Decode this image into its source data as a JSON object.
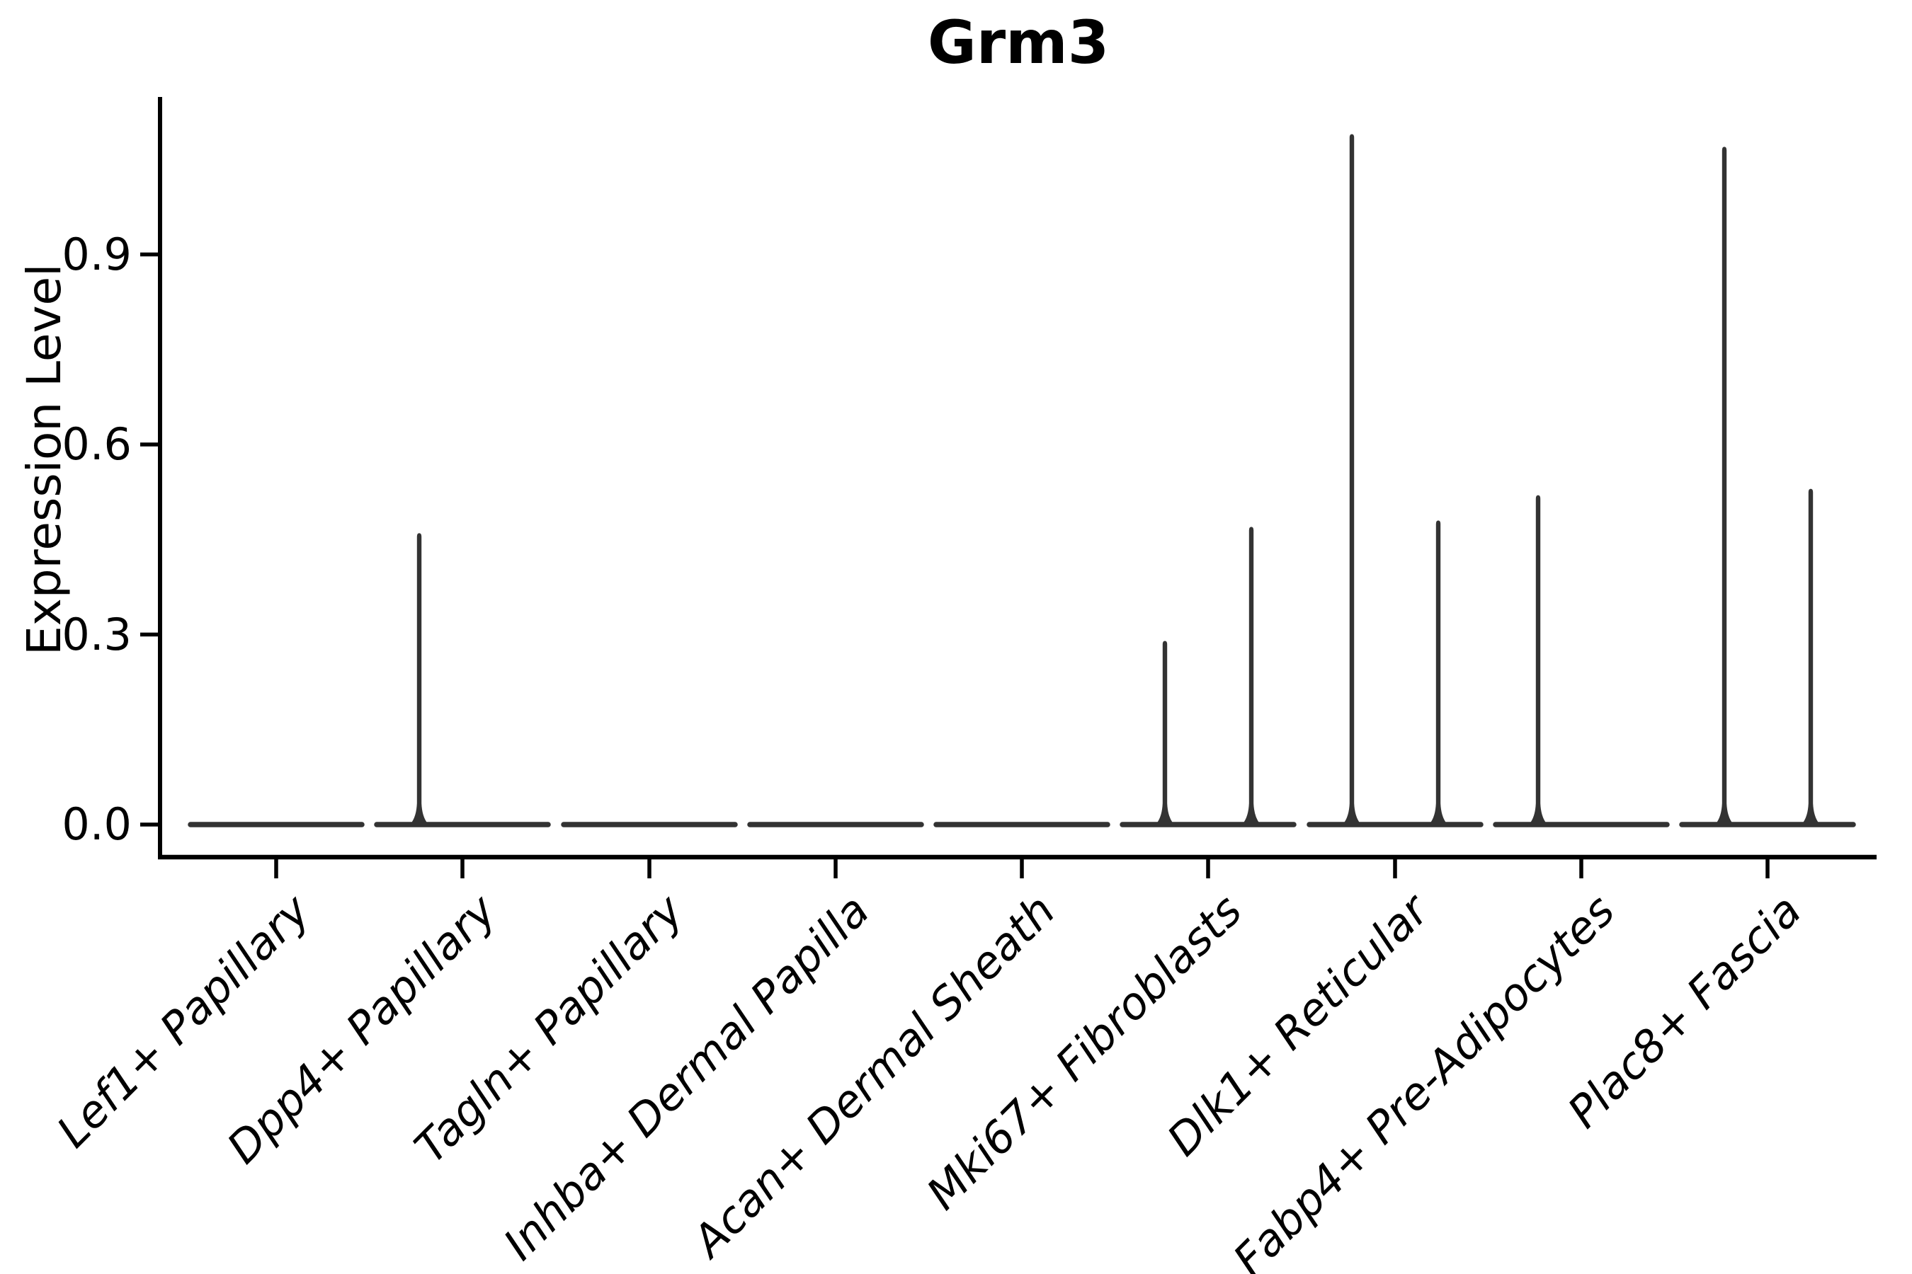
{
  "figure": {
    "title": "Grm3",
    "y_axis": {
      "label": "Expression Level",
      "ticks": [
        {
          "label": "0.0",
          "value": 0.0
        },
        {
          "label": "0.3",
          "value": 0.3
        },
        {
          "label": "0.6",
          "value": 0.6
        },
        {
          "label": "0.9",
          "value": 0.9
        }
      ]
    },
    "x_axis": {
      "categories": [
        "Lef1+ Papillary",
        "Dpp4+ Papillary",
        "Tagln+ Papillary",
        "Inhba+ Dermal Papilla",
        "Acan+ Dermal Sheath",
        "Mki67+ Fibroblasts",
        "Dlk1+ Reticular",
        "Fabp4+ Pre-Adipocytes",
        "Plac8+ Fascia"
      ]
    }
  },
  "chart_data": {
    "type": "violin",
    "title": "Grm3",
    "xlabel": "",
    "ylabel": "Expression Level",
    "ylim": [
      0,
      1.15
    ],
    "yticks": [
      0.0,
      0.3,
      0.6,
      0.9
    ],
    "grid": false,
    "legend": false,
    "categories": [
      "Lef1+ Papillary",
      "Dpp4+ Papillary",
      "Tagln+ Papillary",
      "Inhba+ Dermal Papilla",
      "Acan+ Dermal Sheath",
      "Mki67+ Fibroblasts",
      "Dlk1+ Reticular",
      "Fabp4+ Pre-Adipocytes",
      "Plac8+ Fascia"
    ],
    "series": [
      {
        "category": "Lef1+ Papillary",
        "baseline": 0.0,
        "spikes": []
      },
      {
        "category": "Dpp4+ Papillary",
        "baseline": 0.0,
        "spikes": [
          {
            "side": "left",
            "max": 0.46
          }
        ]
      },
      {
        "category": "Tagln+ Papillary",
        "baseline": 0.0,
        "spikes": []
      },
      {
        "category": "Inhba+ Dermal Papilla",
        "baseline": 0.0,
        "spikes": []
      },
      {
        "category": "Acan+ Dermal Sheath",
        "baseline": 0.0,
        "spikes": []
      },
      {
        "category": "Mki67+ Fibroblasts",
        "baseline": 0.0,
        "spikes": [
          {
            "side": "left",
            "max": 0.29
          },
          {
            "side": "right",
            "max": 0.47
          }
        ]
      },
      {
        "category": "Dlk1+ Reticular",
        "baseline": 0.0,
        "spikes": [
          {
            "side": "left",
            "max": 1.09
          },
          {
            "side": "right",
            "max": 0.48
          }
        ]
      },
      {
        "category": "Fabp4+ Pre-Adipocytes",
        "baseline": 0.0,
        "spikes": [
          {
            "side": "left",
            "max": 0.52
          }
        ]
      },
      {
        "category": "Plac8+ Fascia",
        "baseline": 0.0,
        "spikes": [
          {
            "side": "left",
            "max": 1.07
          },
          {
            "side": "right",
            "max": 0.53
          }
        ]
      }
    ]
  },
  "style": {
    "violin_color": "#333333",
    "axis_color": "#000000",
    "text_color": "#000000",
    "background": "#ffffff"
  }
}
